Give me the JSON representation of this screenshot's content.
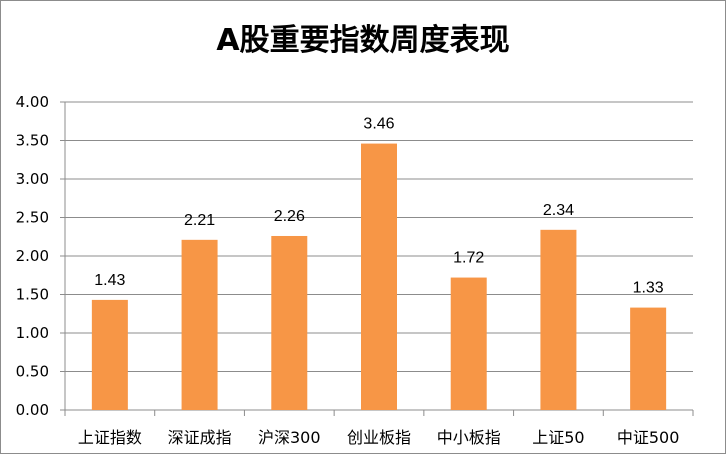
{
  "chart_data": {
    "type": "bar",
    "title": "A股重要指数周度表现",
    "categories": [
      "上证指数",
      "深证成指",
      "沪深300",
      "创业板指",
      "中小板指",
      "上证50",
      "中证500"
    ],
    "values": [
      1.43,
      2.21,
      2.26,
      3.46,
      1.72,
      2.34,
      1.33
    ],
    "value_labels": [
      "1.43",
      "2.21",
      "2.26",
      "3.46",
      "1.72",
      "2.34",
      "1.33"
    ],
    "y_ticks": [
      "0.00",
      "0.50",
      "1.00",
      "1.50",
      "2.00",
      "2.50",
      "3.00",
      "3.50",
      "4.00"
    ],
    "ylim": [
      0,
      4
    ],
    "xlabel": "",
    "ylabel": "",
    "grid": true,
    "bar_color": "#F79646",
    "grid_color": "#8C8C8C"
  }
}
